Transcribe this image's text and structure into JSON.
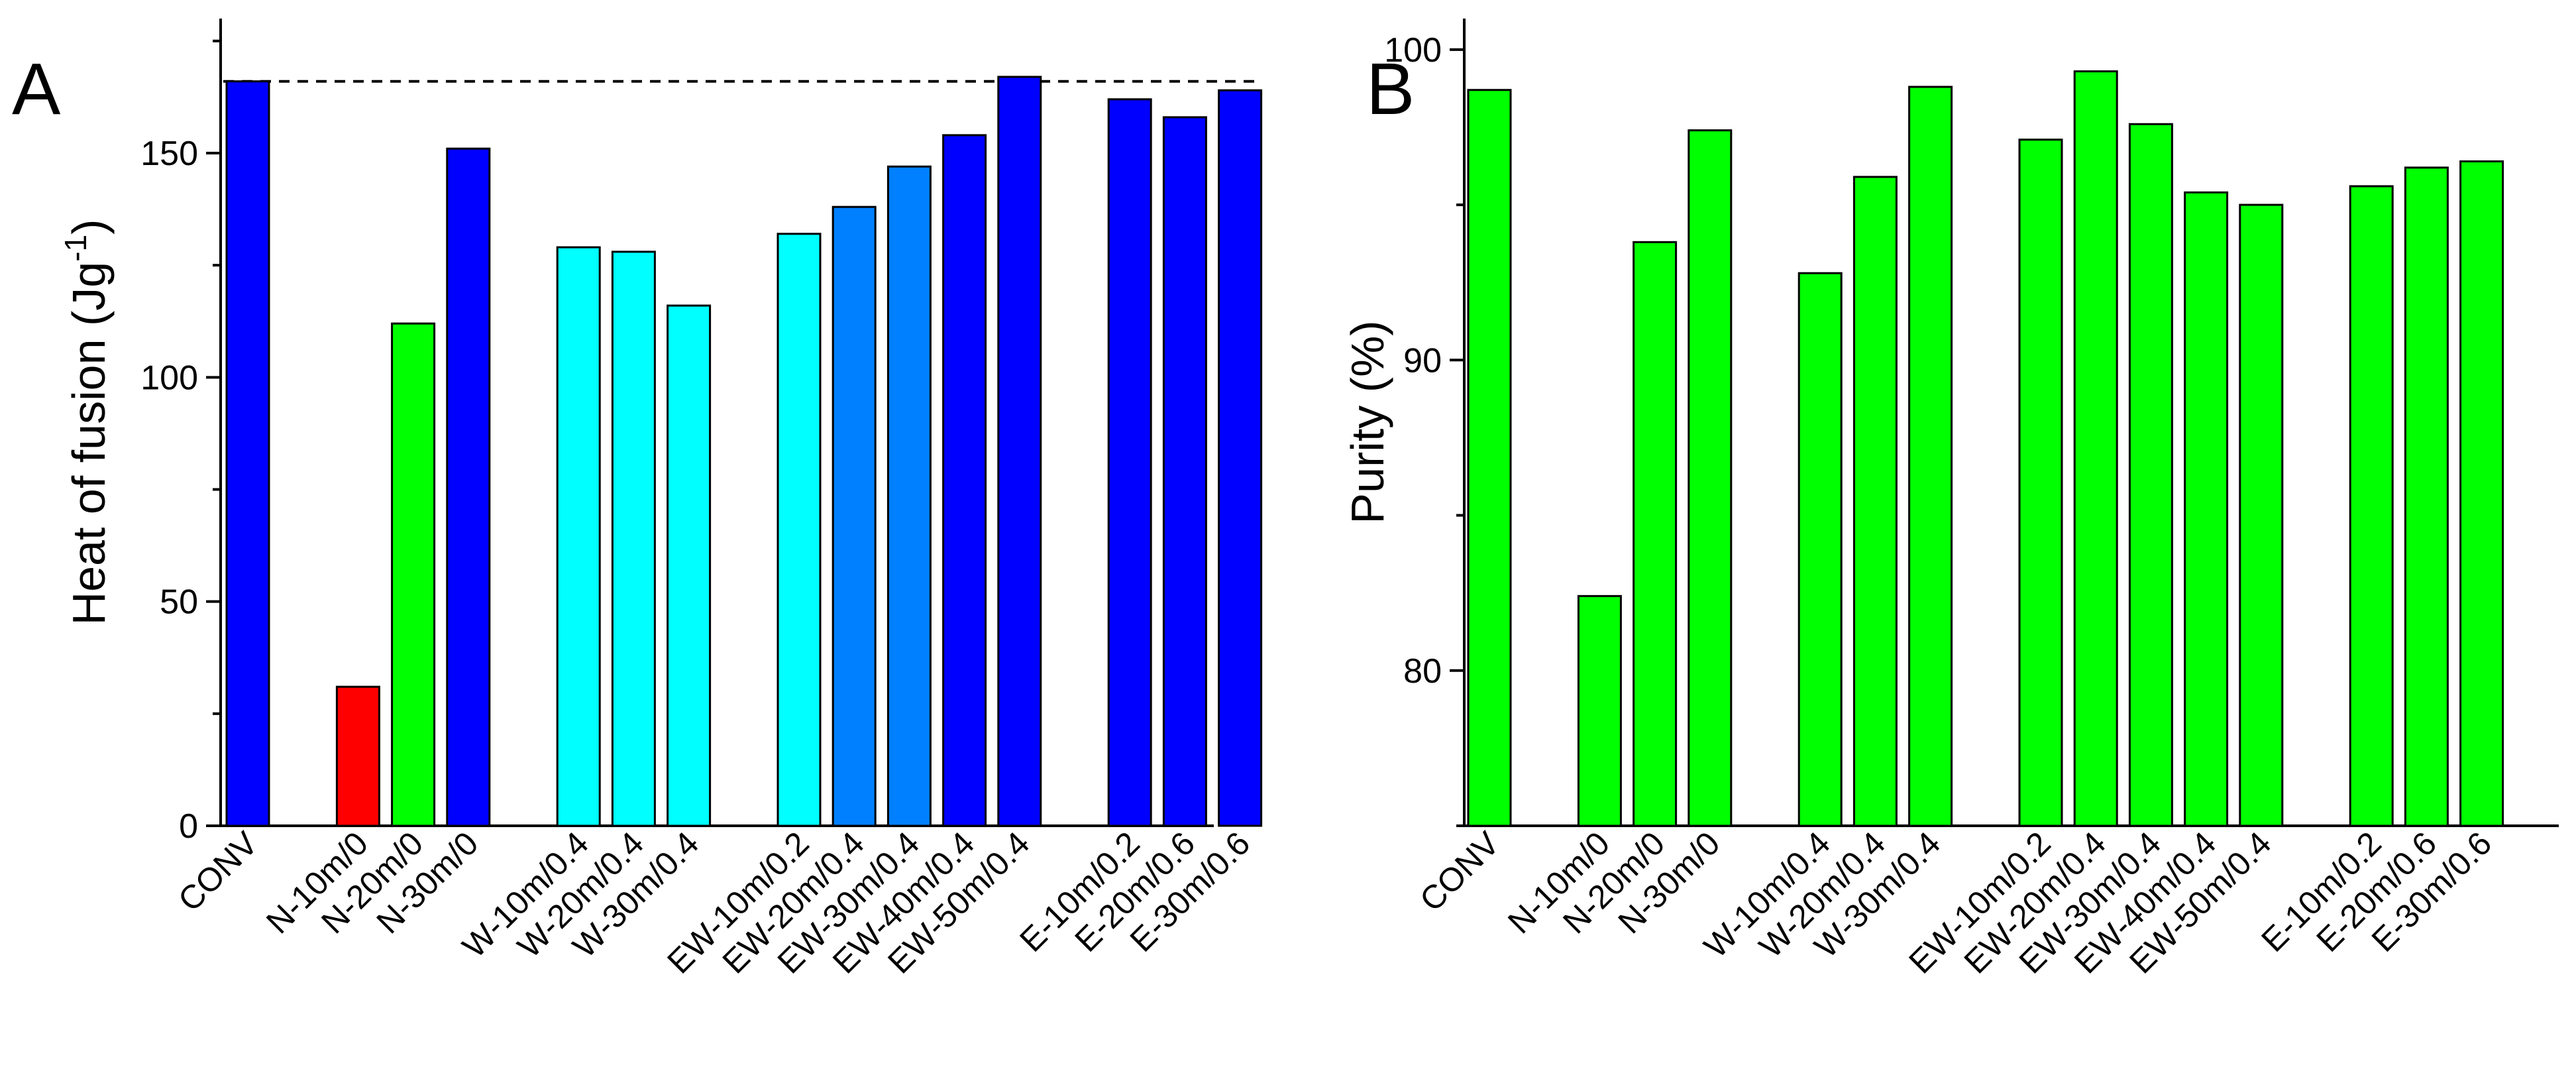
{
  "chart_data": [
    {
      "type": "bar",
      "panel_label": "A",
      "ylabel": "Heat of fusion (Jg",
      "ylabel_sup": "-1",
      "ylabel_close": ")",
      "xlabel": "",
      "ylim": [
        0,
        180
      ],
      "yticks": [
        0,
        50,
        100,
        150
      ],
      "reference_line": 166,
      "categories": [
        "CONV",
        "",
        "N-10m/0",
        "N-20m/0",
        "N-30m/0",
        "",
        "W-10m/0.4",
        "W-20m/0.4",
        "W-30m/0.4",
        "",
        "EW-10m/0.2",
        "EW-20m/0.4",
        "EW-30m/0.4",
        "EW-40m/0.4",
        "EW-50m/0.4",
        "",
        "E-10m/0.2",
        "E-20m/0.6",
        "E-30m/0.6"
      ],
      "values": [
        166,
        null,
        31,
        112,
        151,
        null,
        129,
        128,
        116,
        null,
        132,
        138,
        147,
        154,
        167,
        null,
        162,
        158,
        164
      ],
      "colors": [
        "#0000ff",
        null,
        "#ff0000",
        "#00ff00",
        "#0000ff",
        null,
        "#00ffff",
        "#00ffff",
        "#00ffff",
        null,
        "#00ffff",
        "#0080ff",
        "#0080ff",
        "#0000ff",
        "#0000ff",
        null,
        "#0000ff",
        "#0000ff",
        "#0000ff"
      ]
    },
    {
      "type": "bar",
      "panel_label": "B",
      "ylabel": "Purity (%)",
      "xlabel": "",
      "ylim": [
        75,
        101
      ],
      "yticks": [
        80,
        90,
        100
      ],
      "categories": [
        "CONV",
        "",
        "N-10m/0",
        "N-20m/0",
        "N-30m/0",
        "",
        "W-10m/0.4",
        "W-20m/0.4",
        "W-30m/0.4",
        "",
        "EW-10m/0.2",
        "EW-20m/0.4",
        "EW-30m/0.4",
        "EW-40m/0.4",
        "EW-50m/0.4",
        "",
        "E-10m/0.2",
        "E-20m/0.6",
        "E-30m/0.6"
      ],
      "values": [
        98.7,
        null,
        82.4,
        93.8,
        97.4,
        null,
        92.8,
        95.9,
        98.8,
        null,
        97.1,
        99.3,
        97.6,
        95.4,
        95.0,
        null,
        95.6,
        96.2,
        96.4
      ],
      "colors": [
        "#00ff00",
        null,
        "#00ff00",
        "#00ff00",
        "#00ff00",
        null,
        "#00ff00",
        "#00ff00",
        "#00ff00",
        null,
        "#00ff00",
        "#00ff00",
        "#00ff00",
        "#00ff00",
        "#00ff00",
        null,
        "#00ff00",
        "#00ff00",
        "#00ff00"
      ]
    }
  ]
}
